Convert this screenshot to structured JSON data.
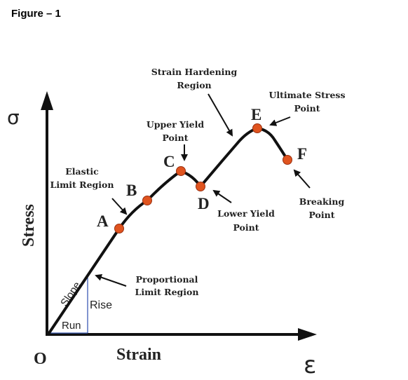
{
  "figure_caption": "Figure – 1",
  "axes": {
    "y_symbol": "σ",
    "y_label": "Stress",
    "x_symbol": "ε",
    "x_label": "Strain",
    "origin": "O"
  },
  "points": [
    {
      "letter": "A"
    },
    {
      "letter": "B"
    },
    {
      "letter": "C"
    },
    {
      "letter": "D"
    },
    {
      "letter": "E"
    },
    {
      "letter": "F"
    }
  ],
  "labels": {
    "elastic": [
      "Elastic",
      "Limit Region"
    ],
    "proportional": [
      "Proportional",
      "Limit Region"
    ],
    "upper_yield": [
      "Upper Yield",
      "Point"
    ],
    "lower_yield": [
      "Lower Yield",
      "Point"
    ],
    "strain_hardening": [
      "Strain Hardening",
      "Region"
    ],
    "ultimate": [
      "Ultimate Stress",
      "Point"
    ],
    "breaking": [
      "Breaking",
      "Point"
    ]
  },
  "slope_triangle": {
    "slope": "Slope",
    "rise": "Rise",
    "run": "Run"
  },
  "colors": {
    "curve": "#111111",
    "point_fill": "#e0541f",
    "point_stroke": "#9a3010",
    "triangle": "#3b5bb5"
  }
}
